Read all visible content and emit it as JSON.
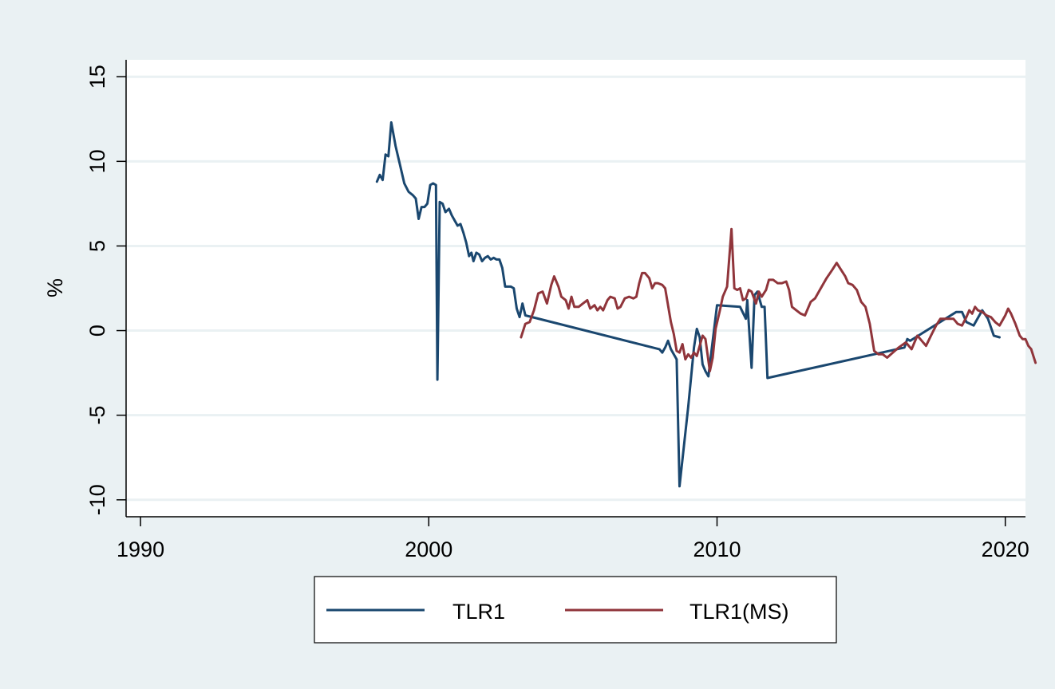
{
  "chart_data": {
    "type": "line",
    "title": "",
    "xlabel": "",
    "ylabel": "%",
    "xlim": [
      1989.5,
      2020.7
    ],
    "ylim": [
      -11,
      16
    ],
    "x_ticks": [
      1990,
      2000,
      2010,
      2020
    ],
    "y_ticks": [
      -10,
      -5,
      0,
      5,
      10,
      15
    ],
    "x_tick_labels": [
      "1990",
      "2000",
      "2010",
      "2020"
    ],
    "y_tick_labels": [
      "-10",
      "-5",
      "0",
      "5",
      "10",
      "15"
    ],
    "grid": "horizontal",
    "legend_position": "bottom",
    "series": [
      {
        "name": "TLR1",
        "color": "#1a476f",
        "points": [
          [
            1998.2,
            8.8
          ],
          [
            1998.3,
            9.2
          ],
          [
            1998.4,
            8.9
          ],
          [
            1998.5,
            10.4
          ],
          [
            1998.6,
            10.3
          ],
          [
            1998.7,
            12.3
          ],
          [
            1998.85,
            10.9
          ],
          [
            1999.0,
            9.8
          ],
          [
            1999.15,
            8.7
          ],
          [
            1999.3,
            8.2
          ],
          [
            1999.45,
            8.0
          ],
          [
            1999.55,
            7.8
          ],
          [
            1999.65,
            6.6
          ],
          [
            1999.75,
            7.3
          ],
          [
            1999.85,
            7.3
          ],
          [
            1999.95,
            7.5
          ],
          [
            2000.05,
            8.6
          ],
          [
            2000.15,
            8.7
          ],
          [
            2000.25,
            8.6
          ],
          [
            2000.3,
            -2.9
          ],
          [
            2000.38,
            7.6
          ],
          [
            2000.48,
            7.5
          ],
          [
            2000.58,
            7.0
          ],
          [
            2000.7,
            7.2
          ],
          [
            2000.8,
            6.8
          ],
          [
            2000.9,
            6.5
          ],
          [
            2001.0,
            6.2
          ],
          [
            2001.1,
            6.3
          ],
          [
            2001.2,
            5.8
          ],
          [
            2001.3,
            5.2
          ],
          [
            2001.4,
            4.4
          ],
          [
            2001.48,
            4.6
          ],
          [
            2001.55,
            4.1
          ],
          [
            2001.65,
            4.6
          ],
          [
            2001.75,
            4.5
          ],
          [
            2001.85,
            4.1
          ],
          [
            2001.95,
            4.3
          ],
          [
            2002.05,
            4.4
          ],
          [
            2002.15,
            4.2
          ],
          [
            2002.25,
            4.3
          ],
          [
            2002.35,
            4.2
          ],
          [
            2002.45,
            4.2
          ],
          [
            2002.55,
            3.7
          ],
          [
            2002.65,
            2.6
          ],
          [
            2002.75,
            2.6
          ],
          [
            2002.85,
            2.6
          ],
          [
            2002.95,
            2.5
          ],
          [
            2003.05,
            1.3
          ],
          [
            2003.15,
            0.8
          ],
          [
            2003.25,
            1.6
          ],
          [
            2003.35,
            0.9
          ],
          [
            2008.0,
            -1.1
          ],
          [
            2008.1,
            -1.3
          ],
          [
            2008.2,
            -1.0
          ],
          [
            2008.3,
            -0.6
          ],
          [
            2008.4,
            -1.1
          ],
          [
            2008.6,
            -1.7
          ],
          [
            2008.7,
            -9.2
          ],
          [
            2009.0,
            -4.5
          ],
          [
            2009.2,
            -1.0
          ],
          [
            2009.3,
            0.1
          ],
          [
            2009.4,
            -0.4
          ],
          [
            2009.5,
            -2.0
          ],
          [
            2009.6,
            -2.4
          ],
          [
            2009.7,
            -2.7
          ],
          [
            2009.9,
            0.1
          ],
          [
            2010.0,
            1.5
          ],
          [
            2010.8,
            1.4
          ],
          [
            2011.0,
            0.7
          ],
          [
            2011.05,
            1.8
          ],
          [
            2011.2,
            -2.2
          ],
          [
            2011.3,
            2.1
          ],
          [
            2011.4,
            2.3
          ],
          [
            2011.55,
            1.4
          ],
          [
            2011.65,
            1.4
          ],
          [
            2011.75,
            -2.8
          ],
          [
            2016.5,
            -1.0
          ],
          [
            2016.6,
            -0.5
          ],
          [
            2016.7,
            -0.6
          ],
          [
            2018.3,
            1.1
          ],
          [
            2018.5,
            1.1
          ],
          [
            2018.65,
            0.5
          ],
          [
            2018.9,
            0.3
          ],
          [
            2019.2,
            1.2
          ],
          [
            2019.4,
            0.7
          ],
          [
            2019.6,
            -0.3
          ],
          [
            2019.8,
            -0.4
          ]
        ]
      },
      {
        "name": "TLR1(MS)",
        "color": "#90353b",
        "points": [
          [
            2003.2,
            -0.4
          ],
          [
            2003.35,
            0.4
          ],
          [
            2003.5,
            0.5
          ],
          [
            2003.65,
            1.2
          ],
          [
            2003.8,
            2.2
          ],
          [
            2003.95,
            2.3
          ],
          [
            2004.1,
            1.6
          ],
          [
            2004.25,
            2.7
          ],
          [
            2004.35,
            3.2
          ],
          [
            2004.5,
            2.6
          ],
          [
            2004.6,
            2.0
          ],
          [
            2004.75,
            1.8
          ],
          [
            2004.85,
            1.3
          ],
          [
            2004.95,
            2.0
          ],
          [
            2005.05,
            1.4
          ],
          [
            2005.2,
            1.4
          ],
          [
            2005.35,
            1.6
          ],
          [
            2005.5,
            1.8
          ],
          [
            2005.6,
            1.3
          ],
          [
            2005.75,
            1.5
          ],
          [
            2005.85,
            1.2
          ],
          [
            2005.95,
            1.4
          ],
          [
            2006.05,
            1.2
          ],
          [
            2006.2,
            1.8
          ],
          [
            2006.3,
            2.0
          ],
          [
            2006.45,
            1.9
          ],
          [
            2006.55,
            1.3
          ],
          [
            2006.65,
            1.4
          ],
          [
            2006.8,
            1.9
          ],
          [
            2006.95,
            2.0
          ],
          [
            2007.1,
            1.9
          ],
          [
            2007.2,
            2.0
          ],
          [
            2007.3,
            2.8
          ],
          [
            2007.4,
            3.4
          ],
          [
            2007.5,
            3.4
          ],
          [
            2007.65,
            3.1
          ],
          [
            2007.75,
            2.5
          ],
          [
            2007.85,
            2.8
          ],
          [
            2007.95,
            2.8
          ],
          [
            2008.1,
            2.7
          ],
          [
            2008.2,
            2.5
          ],
          [
            2008.3,
            1.5
          ],
          [
            2008.4,
            0.5
          ],
          [
            2008.5,
            -0.2
          ],
          [
            2008.6,
            -1.2
          ],
          [
            2008.7,
            -1.3
          ],
          [
            2008.8,
            -0.8
          ],
          [
            2008.9,
            -1.7
          ],
          [
            2009.0,
            -1.4
          ],
          [
            2009.1,
            -1.6
          ],
          [
            2009.2,
            -1.3
          ],
          [
            2009.3,
            -1.5
          ],
          [
            2009.4,
            -0.9
          ],
          [
            2009.5,
            -0.3
          ],
          [
            2009.6,
            -0.5
          ],
          [
            2009.75,
            -2.4
          ],
          [
            2009.85,
            -1.6
          ],
          [
            2009.95,
            0.1
          ],
          [
            2010.1,
            1.2
          ],
          [
            2010.2,
            2.0
          ],
          [
            2010.35,
            2.6
          ],
          [
            2010.5,
            6.0
          ],
          [
            2010.6,
            2.5
          ],
          [
            2010.7,
            2.4
          ],
          [
            2010.8,
            2.5
          ],
          [
            2010.9,
            1.8
          ],
          [
            2011.0,
            1.9
          ],
          [
            2011.1,
            2.4
          ],
          [
            2011.2,
            2.3
          ],
          [
            2011.35,
            1.6
          ],
          [
            2011.45,
            2.3
          ],
          [
            2011.55,
            2.0
          ],
          [
            2011.7,
            2.4
          ],
          [
            2011.8,
            3.0
          ],
          [
            2011.95,
            3.0
          ],
          [
            2012.1,
            2.8
          ],
          [
            2012.25,
            2.8
          ],
          [
            2012.4,
            2.9
          ],
          [
            2012.5,
            2.4
          ],
          [
            2012.6,
            1.4
          ],
          [
            2012.75,
            1.2
          ],
          [
            2012.9,
            1.0
          ],
          [
            2013.05,
            0.9
          ],
          [
            2013.25,
            1.7
          ],
          [
            2013.4,
            1.9
          ],
          [
            2013.6,
            2.5
          ],
          [
            2013.8,
            3.1
          ],
          [
            2014.0,
            3.6
          ],
          [
            2014.15,
            4.0
          ],
          [
            2014.3,
            3.6
          ],
          [
            2014.45,
            3.2
          ],
          [
            2014.55,
            2.8
          ],
          [
            2014.7,
            2.7
          ],
          [
            2014.85,
            2.4
          ],
          [
            2015.0,
            1.7
          ],
          [
            2015.15,
            1.4
          ],
          [
            2015.3,
            0.4
          ],
          [
            2015.45,
            -1.2
          ],
          [
            2015.6,
            -1.4
          ],
          [
            2015.75,
            -1.4
          ],
          [
            2015.9,
            -1.6
          ],
          [
            2016.1,
            -1.3
          ],
          [
            2016.3,
            -1.0
          ],
          [
            2016.55,
            -0.7
          ],
          [
            2016.75,
            -1.1
          ],
          [
            2016.95,
            -0.3
          ],
          [
            2017.1,
            -0.6
          ],
          [
            2017.25,
            -0.9
          ],
          [
            2017.45,
            -0.2
          ],
          [
            2017.6,
            0.3
          ],
          [
            2017.75,
            0.7
          ],
          [
            2017.9,
            0.7
          ],
          [
            2018.05,
            0.7
          ],
          [
            2018.2,
            0.7
          ],
          [
            2018.35,
            0.4
          ],
          [
            2018.5,
            0.3
          ],
          [
            2018.65,
            0.8
          ],
          [
            2018.75,
            1.2
          ],
          [
            2018.85,
            1.0
          ],
          [
            2018.95,
            1.4
          ],
          [
            2019.05,
            1.2
          ],
          [
            2019.2,
            1.1
          ],
          [
            2019.35,
            0.9
          ],
          [
            2019.5,
            0.8
          ],
          [
            2019.65,
            0.5
          ],
          [
            2019.8,
            0.3
          ],
          [
            2020.0,
            0.9
          ],
          [
            2020.1,
            1.3
          ],
          [
            2020.2,
            1.0
          ],
          [
            2020.35,
            0.4
          ],
          [
            2020.5,
            -0.3
          ],
          [
            2020.6,
            -0.5
          ],
          [
            2020.7,
            -0.5
          ],
          [
            2020.8,
            -0.9
          ],
          [
            2020.9,
            -1.1
          ],
          [
            2021.05,
            -1.9
          ]
        ]
      }
    ],
    "legend": {
      "items": [
        {
          "label": "TLR1",
          "color": "#1a476f"
        },
        {
          "label": "TLR1(MS)",
          "color": "#90353b"
        }
      ]
    }
  }
}
